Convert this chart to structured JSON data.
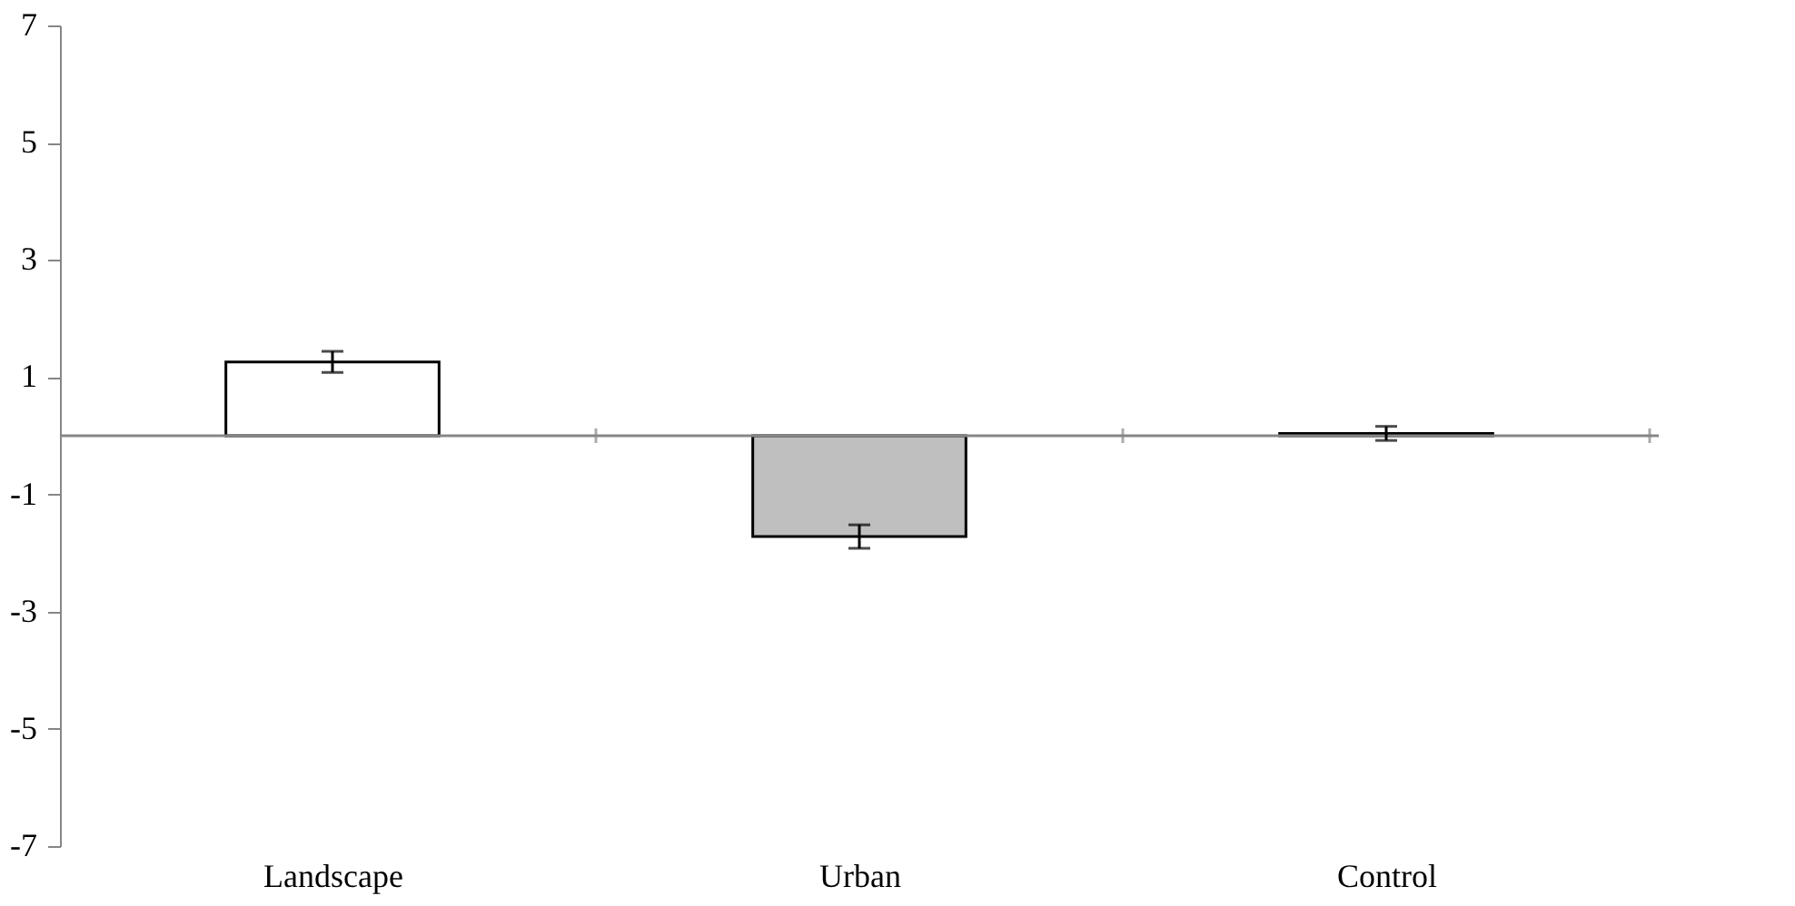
{
  "chart_data": {
    "type": "bar",
    "categories": [
      "Landscape",
      "Urban",
      "Control"
    ],
    "values": [
      1.26,
      -1.72,
      0.04
    ],
    "colors": [
      "#ffffff",
      "#bfbfbf",
      "#ffffff"
    ],
    "errors": [
      0.18,
      0.2,
      0.12
    ],
    "ylim": [
      -7,
      7
    ],
    "yticks": [
      -7,
      -5,
      -3,
      -1,
      1,
      3,
      5,
      7
    ],
    "grid": false
  }
}
